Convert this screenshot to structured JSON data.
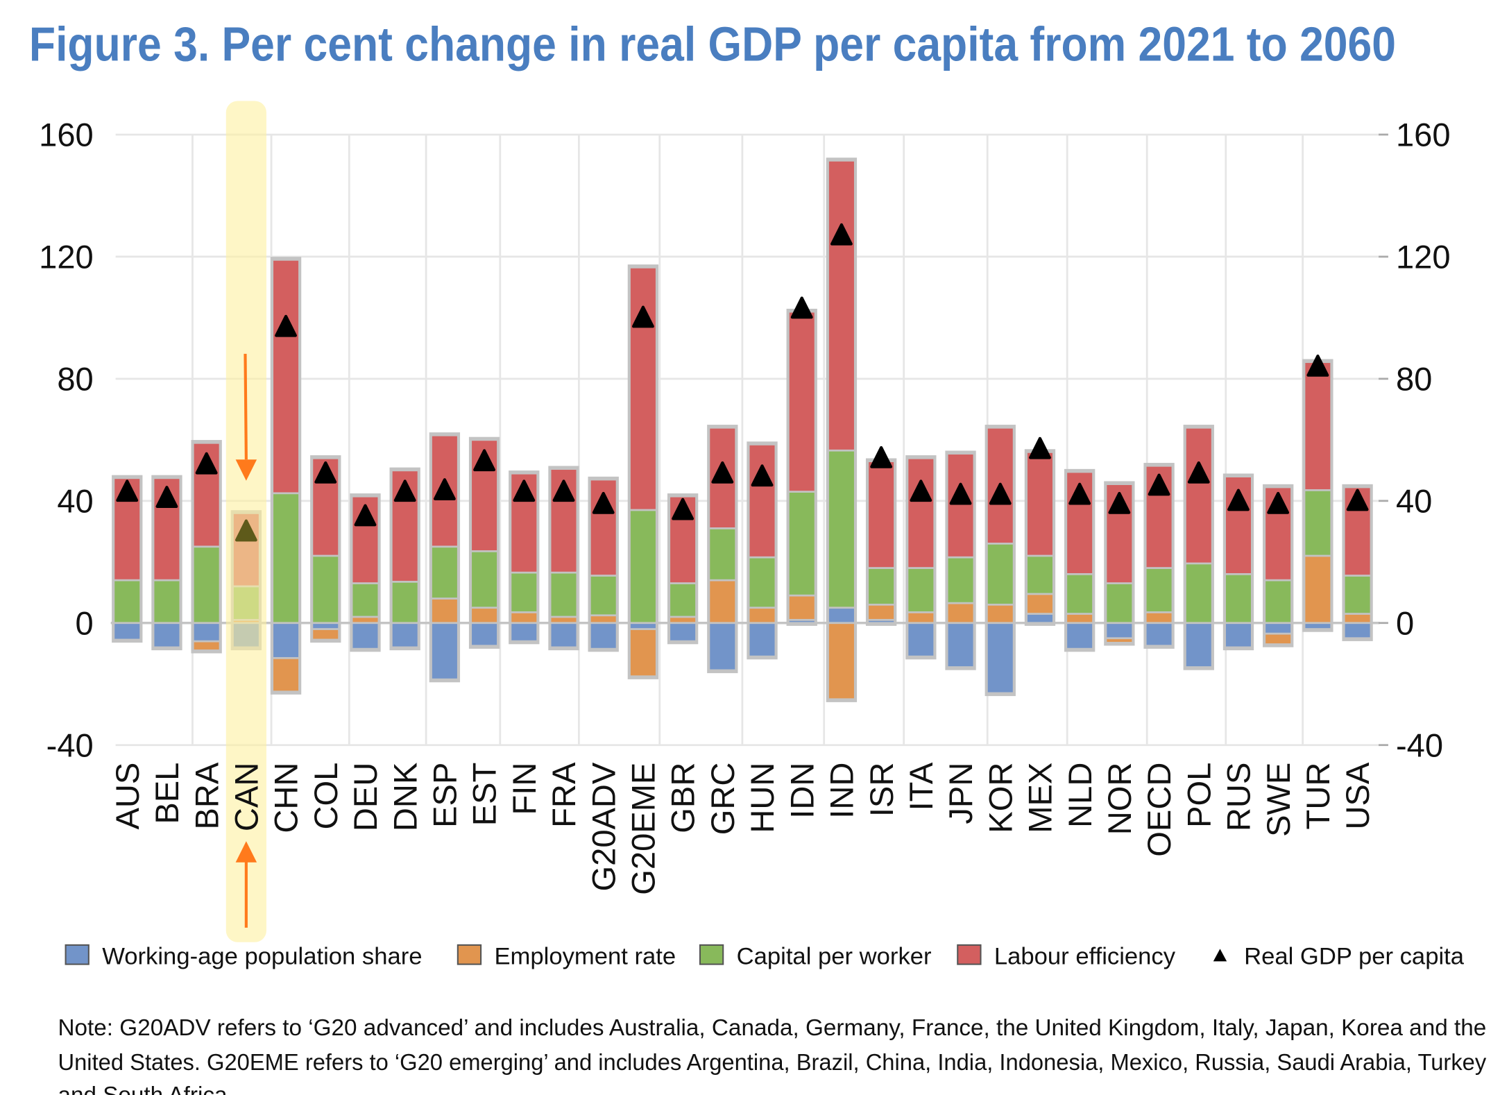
{
  "chart_data": {
    "type": "bar",
    "stacked": true,
    "title": "Figure 3. Per cent change in real GDP per capita from 2021 to 2060",
    "xlabel": "",
    "ylabel": "",
    "ylim": [
      -40,
      160
    ],
    "yticks": [
      "160",
      "120",
      "80",
      "40",
      "0",
      "-40"
    ],
    "ytick_values": [
      160,
      120,
      80,
      40,
      0,
      -40
    ],
    "grid": true,
    "legend_position": "bottom",
    "highlighted_category": "CAN",
    "categories": [
      "AUS",
      "BEL",
      "BRA",
      "CAN",
      "CHN",
      "COL",
      "DEU",
      "DNK",
      "ESP",
      "EST",
      "FIN",
      "FRA",
      "G20ADV",
      "G20EME",
      "GBR",
      "GRC",
      "HUN",
      "IDN",
      "IND",
      "ISR",
      "ITA",
      "JPN",
      "KOR",
      "MEX",
      "NLD",
      "NOR",
      "OECD",
      "POL",
      "RUS",
      "SWE",
      "TUR",
      "USA"
    ],
    "series": [
      {
        "name": "Working-age population share",
        "color": "#7294c9",
        "values": [
          -5.5,
          -8,
          -6,
          -8,
          -11.5,
          -2,
          -8.5,
          -8,
          -18.5,
          -7.5,
          -6,
          -8,
          -8.5,
          -2,
          -6,
          -15.5,
          -11,
          1,
          5,
          1,
          -11,
          -14.5,
          -23,
          3,
          -8.5,
          -5,
          -7.5,
          -14.5,
          -8,
          -3.5,
          -2,
          -5
        ]
      },
      {
        "name": "Employment rate",
        "color": "#e1954f",
        "values": [
          0,
          0,
          -3,
          1,
          -11,
          -3.5,
          2,
          0,
          8,
          5,
          3.5,
          2,
          2.5,
          -15.5,
          2,
          14,
          5,
          8,
          -25,
          5,
          3.5,
          6.5,
          6,
          6.5,
          3,
          -1.5,
          3.5,
          0,
          0,
          -3.5,
          22,
          3
        ]
      },
      {
        "name": "Capital per worker",
        "color": "#88b95b",
        "values": [
          14,
          14,
          25,
          11,
          42.5,
          22,
          11,
          13.5,
          17,
          18.5,
          13,
          14.5,
          13,
          37,
          11,
          17,
          16.5,
          34,
          51.5,
          12,
          14.5,
          15,
          20,
          12.5,
          13,
          13,
          14.5,
          19.5,
          16,
          14,
          21.5,
          12.5
        ]
      },
      {
        "name": "Labour efficiency",
        "color": "#d35f5f",
        "values": [
          33.5,
          33.5,
          34,
          24,
          76.5,
          32,
          28.5,
          36.5,
          36.5,
          36.5,
          32.5,
          34,
          31.5,
          79.5,
          28.5,
          33,
          37,
          59,
          95,
          35,
          36,
          34,
          38,
          34,
          33.5,
          32.5,
          33.5,
          44.5,
          32,
          30.5,
          42,
          29
        ]
      }
    ],
    "markers": {
      "name": "Real GDP per capita",
      "color": "#000000",
      "values": [
        43,
        41,
        52,
        30,
        97,
        49,
        35,
        43,
        43.5,
        53,
        43,
        43,
        39,
        100,
        37,
        49,
        48,
        103,
        127,
        54,
        43,
        42,
        42,
        57,
        42,
        39,
        45,
        49,
        40,
        39,
        84,
        40
      ]
    }
  },
  "legend": [
    "Working-age population share",
    "Employment rate",
    "Capital per worker",
    "Labour efficiency",
    "Real GDP per capita"
  ],
  "note": [
    "Note: G20ADV refers to ‘G20 advanced’ and includes Australia, Canada, Germany, France, the United Kingdom, Italy, Japan, Korea and the",
    "United States. G20EME refers to ‘G20 emerging’ and includes Argentina, Brazil, China, India, Indonesia, Mexico, Russia, Saudi Arabia, Turkey",
    "and South Africa."
  ]
}
